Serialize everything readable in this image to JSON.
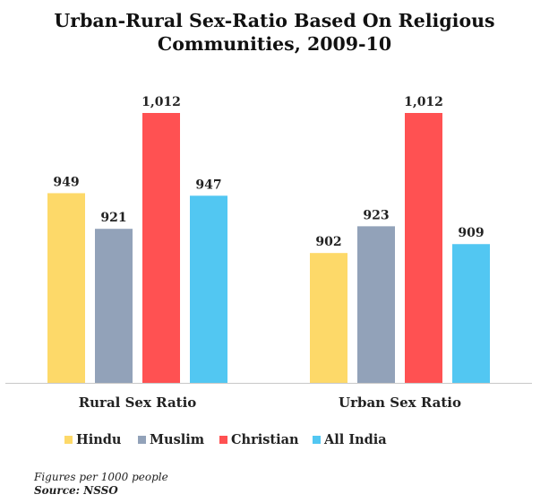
{
  "title_lines": [
    "Urban-Rural Sex-Ratio Based On Religious",
    "Communities, 2009-10"
  ],
  "chart_data": {
    "type": "bar",
    "title": "Urban-Rural Sex-Ratio Based On Religious Communities, 2009-10",
    "categories": [
      "Rural Sex Ratio",
      "Urban Sex Ratio"
    ],
    "series": [
      {
        "name": "Hindu",
        "values": [
          949,
          902
        ],
        "labels": [
          "949",
          "902"
        ],
        "color": "#FDD969"
      },
      {
        "name": "Muslim",
        "values": [
          921,
          923
        ],
        "labels": [
          "921",
          "923"
        ],
        "color": "#92A2B9"
      },
      {
        "name": "Christian",
        "values": [
          1012,
          1012
        ],
        "labels": [
          "1,012",
          "1,012"
        ],
        "color": "#FF5152"
      },
      {
        "name": "All India",
        "values": [
          947,
          909
        ],
        "labels": [
          "947",
          "909"
        ],
        "color": "#52C7F2"
      }
    ],
    "ylim": [
      800,
      1040
    ],
    "grid": false,
    "legend_position": "bottom-left"
  },
  "footnote": {
    "figures": "Figures per 1000 people",
    "source": "Source: NSSO"
  }
}
